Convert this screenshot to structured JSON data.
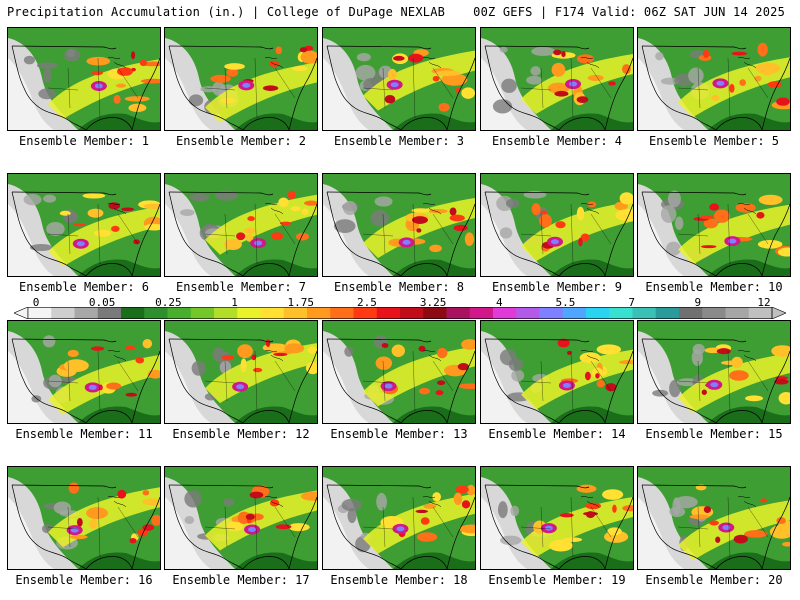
{
  "header": {
    "left": "Precipitation Accumulation (in.) | College of DuPage NEXLAB",
    "right": "00Z GEFS | F174 Valid: 06Z SAT JUN 14 2025"
  },
  "member_label_prefix": "Ensemble Member:",
  "members": [
    1,
    2,
    3,
    4,
    5,
    6,
    7,
    8,
    9,
    10,
    11,
    12,
    13,
    14,
    15,
    16,
    17,
    18,
    19,
    20
  ],
  "colorbar": {
    "tick_labels": [
      "0",
      "0.05",
      "0.25",
      "1",
      "1.75",
      "2.5",
      "3.25",
      "4",
      "5.5",
      "7",
      "9",
      "12"
    ],
    "colors": [
      "#f4f4f4",
      "#cfcfcf",
      "#a8a8a8",
      "#7a7a7a",
      "#1a6e1a",
      "#2f8f2f",
      "#49ad2d",
      "#74c72b",
      "#b2de2a",
      "#eaf22a",
      "#ffe033",
      "#ffc02a",
      "#ff9a1e",
      "#ff6e18",
      "#ff3a12",
      "#e8121c",
      "#c20c1a",
      "#8e0a12",
      "#a8125e",
      "#d0188a",
      "#e03ad8",
      "#b45ae8",
      "#7e80ff",
      "#4fa6ff",
      "#2ad4f0",
      "#38e0d0",
      "#3ac0b4",
      "#2a9a9a",
      "#707070",
      "#8a8a8a",
      "#a6a6a6",
      "#c0c0c0"
    ]
  }
}
